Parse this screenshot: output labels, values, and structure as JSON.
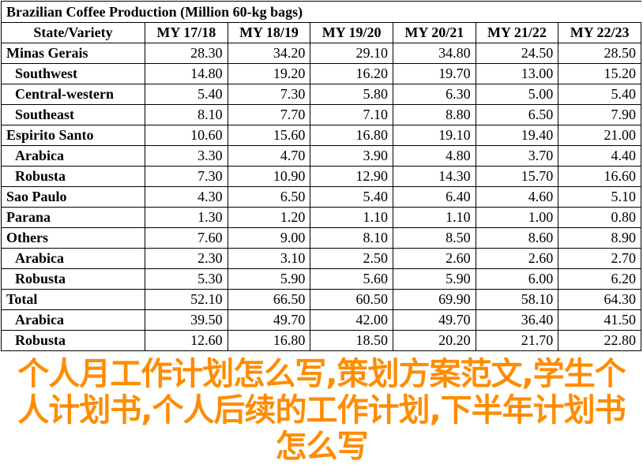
{
  "title": "Brazilian Coffee Production (Million 60-kg bags)",
  "columns": [
    "State/Variety",
    "MY 17/18",
    "MY 18/19",
    "MY 19/20",
    "MY 20/21",
    "MY 21/22",
    "MY 22/23"
  ],
  "rows": [
    {
      "label": "Minas Gerais",
      "sub": false,
      "values": [
        "28.30",
        "34.20",
        "29.10",
        "34.80",
        "24.50",
        "28.50"
      ]
    },
    {
      "label": "Southwest",
      "sub": true,
      "values": [
        "14.80",
        "19.20",
        "16.20",
        "19.70",
        "13.00",
        "15.20"
      ]
    },
    {
      "label": "Central-western",
      "sub": true,
      "values": [
        "5.40",
        "7.30",
        "5.80",
        "6.30",
        "5.00",
        "5.40"
      ]
    },
    {
      "label": "Southeast",
      "sub": true,
      "values": [
        "8.10",
        "7.70",
        "7.10",
        "8.80",
        "6.50",
        "7.90"
      ]
    },
    {
      "label": "Espirito Santo",
      "sub": false,
      "values": [
        "10.60",
        "15.60",
        "16.80",
        "19.10",
        "19.40",
        "21.00"
      ]
    },
    {
      "label": "Arabica",
      "sub": true,
      "values": [
        "3.30",
        "4.70",
        "3.90",
        "4.80",
        "3.70",
        "4.40"
      ]
    },
    {
      "label": "Robusta",
      "sub": true,
      "values": [
        "7.30",
        "10.90",
        "12.90",
        "14.30",
        "15.70",
        "16.60"
      ]
    },
    {
      "label": "Sao Paulo",
      "sub": false,
      "values": [
        "4.30",
        "6.50",
        "5.40",
        "6.40",
        "4.60",
        "5.10"
      ]
    },
    {
      "label": "Parana",
      "sub": false,
      "values": [
        "1.30",
        "1.20",
        "1.10",
        "1.10",
        "1.00",
        "0.80"
      ]
    },
    {
      "label": "Others",
      "sub": false,
      "values": [
        "7.60",
        "9.00",
        "8.10",
        "8.50",
        "8.60",
        "8.90"
      ]
    },
    {
      "label": "Arabica",
      "sub": true,
      "values": [
        "2.30",
        "3.10",
        "2.50",
        "2.60",
        "2.60",
        "2.70"
      ]
    },
    {
      "label": "Robusta",
      "sub": true,
      "values": [
        "5.30",
        "5.90",
        "5.60",
        "5.90",
        "6.00",
        "6.20"
      ]
    },
    {
      "label": "Total",
      "sub": false,
      "values": [
        "52.10",
        "66.50",
        "60.50",
        "69.90",
        "58.10",
        "64.30"
      ]
    },
    {
      "label": "Arabica",
      "sub": true,
      "values": [
        "39.50",
        "49.70",
        "42.00",
        "49.70",
        "36.40",
        "41.50"
      ]
    },
    {
      "label": "Robusta",
      "sub": true,
      "values": [
        "12.60",
        "16.80",
        "18.50",
        "20.20",
        "21.70",
        "22.80"
      ]
    }
  ],
  "overlay_text": "个人月工作计划怎么写,策划方案范文,学生个人计划书,个人后续的工作计划,下半年计划书怎么写",
  "colors": {
    "overlay": "#ff8c00"
  }
}
